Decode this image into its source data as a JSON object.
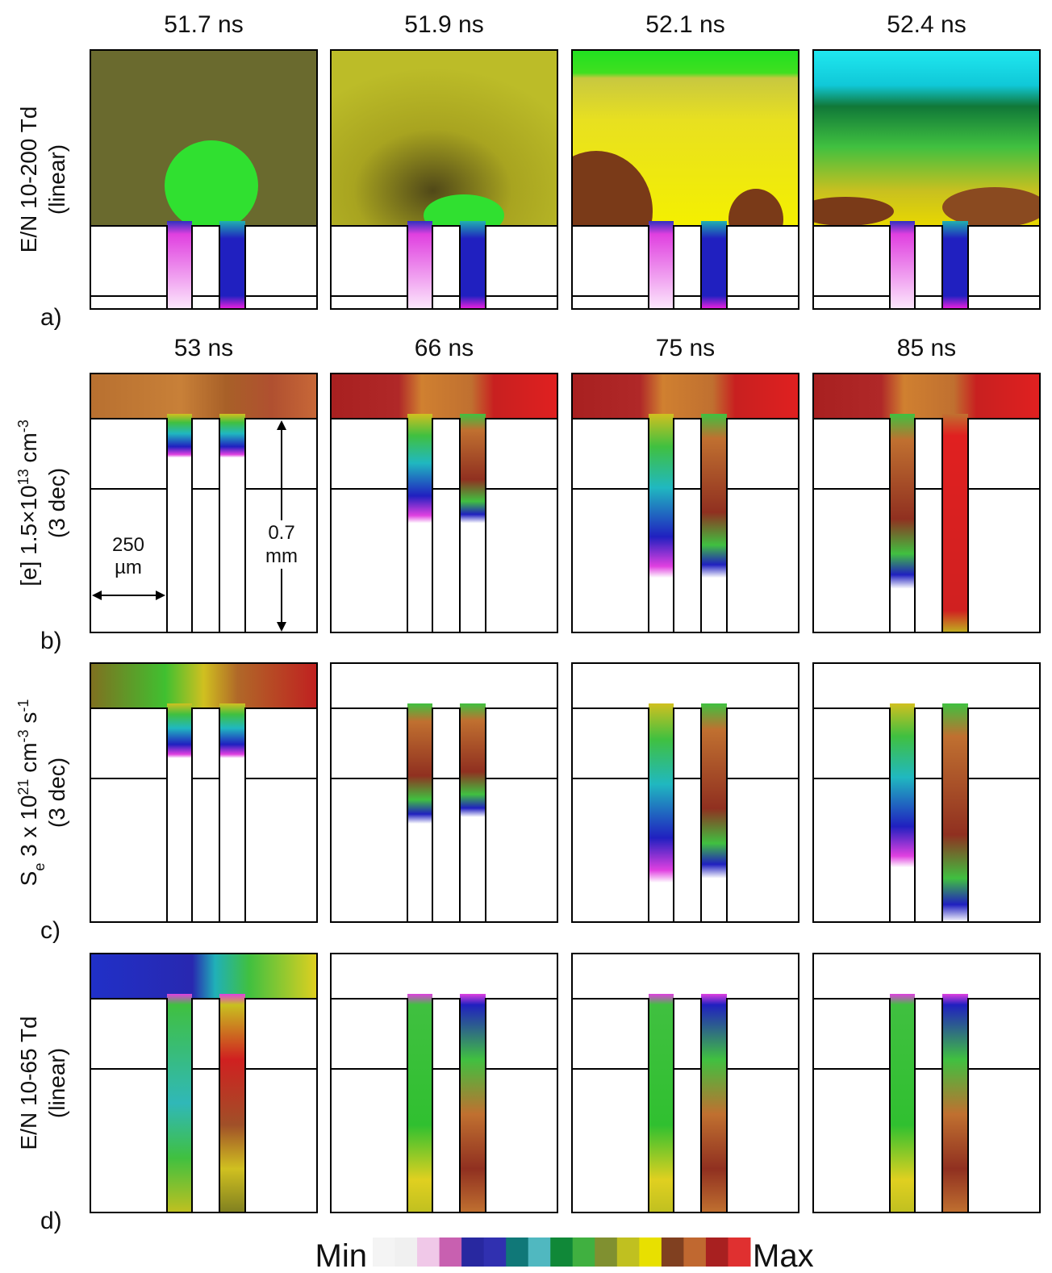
{
  "rows": [
    {
      "letter": "a)",
      "label": [
        {
          "text": "E/N 10-200 Td"
        }
      ],
      "label2": "(linear)",
      "times": [
        "51.7 ns",
        "51.9 ns",
        "52.1 ns",
        "52.4 ns"
      ]
    },
    {
      "letter": "b)",
      "label": [
        {
          "text": "[e] 1.5×10"
        },
        {
          "text": "13",
          "script": "sup"
        },
        {
          "text": " cm"
        },
        {
          "text": "-3",
          "script": "sup"
        }
      ],
      "label2": "(3 dec)",
      "times": [
        "53 ns",
        "66 ns",
        "75 ns",
        "85 ns"
      ]
    },
    {
      "letter": "c)",
      "label": [
        {
          "text": "S"
        },
        {
          "text": "e",
          "script": "sub"
        },
        {
          "text": " 3 x 10"
        },
        {
          "text": "21",
          "script": "sup"
        },
        {
          "text": " cm"
        },
        {
          "text": "-3",
          "script": "sup"
        },
        {
          "text": " s"
        },
        {
          "text": "-1",
          "script": "sup"
        }
      ],
      "label2": "(3 dec)"
    },
    {
      "letter": "d)",
      "label": [
        {
          "text": "E/N 10-65 Td"
        }
      ],
      "label2": "(linear)"
    }
  ],
  "annotations": {
    "width": [
      "250",
      "µm"
    ],
    "height": [
      "0.7",
      "mm"
    ]
  },
  "colorbar": {
    "min": "Min",
    "max": "Max"
  }
}
